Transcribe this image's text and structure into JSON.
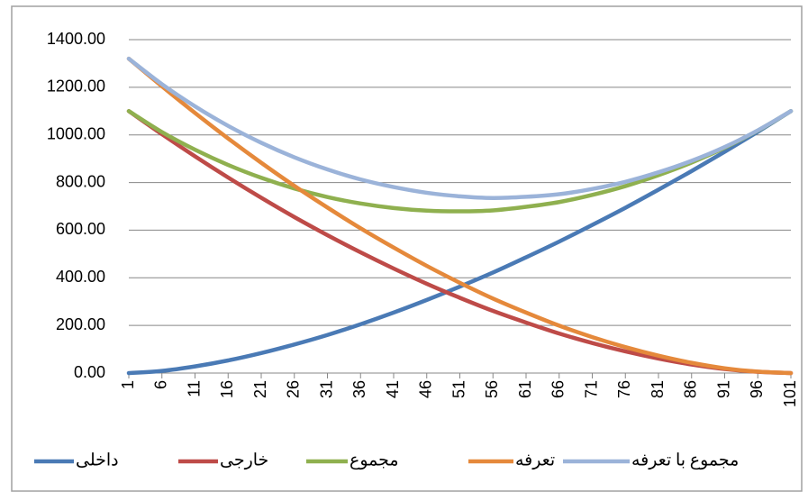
{
  "chart_data": {
    "type": "line",
    "x": [
      1,
      6,
      11,
      16,
      21,
      26,
      31,
      36,
      41,
      46,
      51,
      56,
      61,
      66,
      71,
      76,
      81,
      86,
      91,
      96,
      101
    ],
    "xlim": [
      1,
      101
    ],
    "xticks": [
      1,
      6,
      11,
      16,
      21,
      26,
      31,
      36,
      41,
      46,
      51,
      56,
      61,
      66,
      71,
      76,
      81,
      86,
      91,
      96,
      101
    ],
    "ylim": [
      0,
      1400
    ],
    "yticks": [
      {
        "value": 0,
        "label": "0.00"
      },
      {
        "value": 200,
        "label": "200.00"
      },
      {
        "value": 400,
        "label": "400.00"
      },
      {
        "value": 600,
        "label": "600.00"
      },
      {
        "value": 800,
        "label": "800.00"
      },
      {
        "value": 1000,
        "label": "1000.00"
      },
      {
        "value": 1200,
        "label": "1200.00"
      },
      {
        "value": 1400,
        "label": "1400.00"
      }
    ],
    "grid": true,
    "legend": "bottom",
    "series": [
      {
        "name": "داخلی",
        "color": "#4a7ab5",
        "values": [
          0,
          9,
          28,
          53,
          84,
          120,
          160,
          205,
          254,
          307,
          363,
          422,
          486,
          552,
          622,
          694,
          770,
          848,
          929,
          1013,
          1100
        ]
      },
      {
        "name": "خارجی",
        "color": "#be4b48",
        "values": [
          1100,
          1003,
          910,
          821,
          736,
          655,
          579,
          507,
          439,
          375,
          316,
          261,
          212,
          166,
          126,
          91,
          61,
          36,
          17,
          5,
          0
        ]
      },
      {
        "name": "مجموع",
        "color": "#8fb04f",
        "values": [
          1100,
          1012,
          938,
          874,
          820,
          775,
          739,
          712,
          693,
          682,
          679,
          683,
          698,
          718,
          748,
          785,
          831,
          884,
          946,
          1018,
          1100
        ]
      },
      {
        "name": "تعرفه",
        "color": "#e5893b",
        "values": [
          1320,
          1204,
          1092,
          985,
          883,
          786,
          695,
          608,
          527,
          450,
          379,
          313,
          254,
          199,
          151,
          109,
          73,
          43,
          20,
          6,
          0
        ]
      },
      {
        "name": "مجموع با تعرفه",
        "color": "#9bb3d9",
        "values": [
          1320,
          1213,
          1120,
          1038,
          967,
          906,
          855,
          813,
          781,
          757,
          742,
          735,
          740,
          751,
          773,
          803,
          843,
          891,
          949,
          1019,
          1100
        ]
      }
    ]
  }
}
